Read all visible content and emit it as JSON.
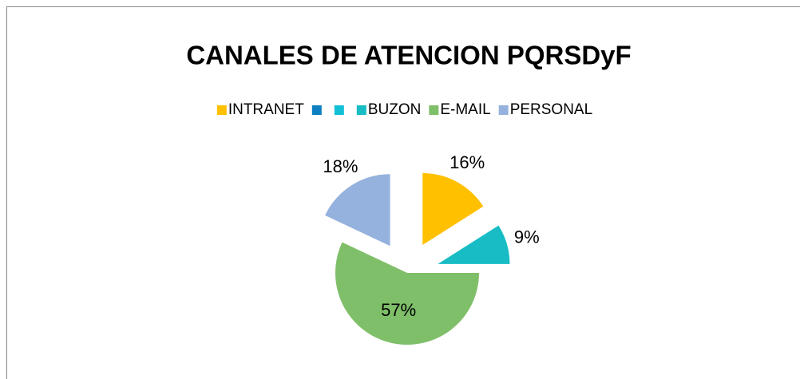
{
  "chart_data": {
    "type": "pie",
    "title": "CANALES DE ATENCION PQRSDyF",
    "categories": [
      "INTRANET",
      null,
      null,
      "BUZON",
      "E-MAIL",
      "PERSONAL"
    ],
    "values": [
      16,
      0,
      0,
      9,
      57,
      18
    ],
    "value_labels": [
      "16%",
      null,
      null,
      "9%",
      "57%",
      "18%"
    ],
    "colors": [
      "#ffc000",
      "#0e7fc0",
      "#13c1d6",
      "#17bcc4",
      "#80bf69",
      "#95b1dd"
    ],
    "legend": "top"
  }
}
